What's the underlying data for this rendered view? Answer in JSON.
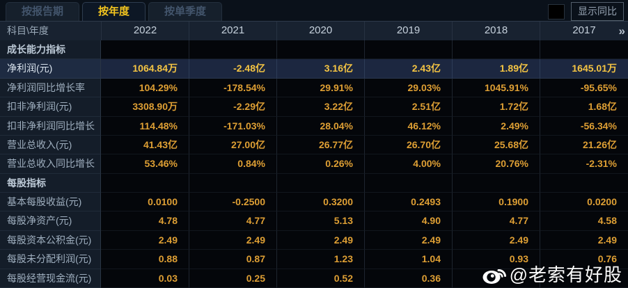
{
  "tabs": [
    {
      "label": "按报告期",
      "active": false
    },
    {
      "label": "按年度",
      "active": true
    },
    {
      "label": "按单季度",
      "active": false
    }
  ],
  "controls": {
    "show_yoy_label": "显示同比",
    "checkbox_checked": false
  },
  "table": {
    "corner_header": "科目\\年度",
    "year_headers": [
      "2022",
      "2021",
      "2020",
      "2019",
      "2018",
      "2017"
    ],
    "more_icon": "»",
    "rows": [
      {
        "type": "section",
        "label": "成长能力指标",
        "values": [
          "",
          "",
          "",
          "",
          "",
          ""
        ]
      },
      {
        "type": "data",
        "highlight": true,
        "label": "净利润(元)",
        "values": [
          "1064.84万",
          "-2.48亿",
          "3.16亿",
          "2.43亿",
          "1.89亿",
          "1645.01万"
        ]
      },
      {
        "type": "data",
        "label": "净利润同比增长率",
        "values": [
          "104.29%",
          "-178.54%",
          "29.91%",
          "29.03%",
          "1045.91%",
          "-95.65%"
        ]
      },
      {
        "type": "data",
        "label": "扣非净利润(元)",
        "values": [
          "3308.90万",
          "-2.29亿",
          "3.22亿",
          "2.51亿",
          "1.72亿",
          "1.68亿"
        ]
      },
      {
        "type": "data",
        "label": "扣非净利润同比增长率",
        "values": [
          "114.48%",
          "-171.03%",
          "28.04%",
          "46.12%",
          "2.49%",
          "-56.34%"
        ]
      },
      {
        "type": "data",
        "label": "营业总收入(元)",
        "values": [
          "41.43亿",
          "27.00亿",
          "26.77亿",
          "26.70亿",
          "25.68亿",
          "21.26亿"
        ]
      },
      {
        "type": "data",
        "label": "营业总收入同比增长率",
        "values": [
          "53.46%",
          "0.84%",
          "0.26%",
          "4.00%",
          "20.76%",
          "-2.31%"
        ]
      },
      {
        "type": "section",
        "label": "每股指标",
        "values": [
          "",
          "",
          "",
          "",
          "",
          ""
        ]
      },
      {
        "type": "data",
        "label": "基本每股收益(元)",
        "values": [
          "0.0100",
          "-0.2500",
          "0.3200",
          "0.2493",
          "0.1900",
          "0.0200"
        ]
      },
      {
        "type": "data",
        "label": "每股净资产(元)",
        "values": [
          "4.78",
          "4.77",
          "5.13",
          "4.90",
          "4.77",
          "4.58"
        ]
      },
      {
        "type": "data",
        "label": "每股资本公积金(元)",
        "values": [
          "2.49",
          "2.49",
          "2.49",
          "2.49",
          "2.49",
          "2.49"
        ]
      },
      {
        "type": "data",
        "label": "每股未分配利润(元)",
        "values": [
          "0.88",
          "0.87",
          "1.23",
          "1.04",
          "0.93",
          "0.76"
        ]
      },
      {
        "type": "data",
        "label": "每股经营现金流(元)",
        "values": [
          "0.03",
          "0.25",
          "0.52",
          "0.36",
          "",
          ""
        ]
      }
    ]
  },
  "watermark": {
    "icon": "weibo-icon",
    "handle": "@老索有好股"
  },
  "colors": {
    "active_tab_text": "#f2c41f",
    "value_text": "#de9f34",
    "highlight_value_text": "#f4c443",
    "highlight_row_bg": "#1c2740",
    "label_cell_bg": "#141d29",
    "header_row_bg": "#182230"
  }
}
